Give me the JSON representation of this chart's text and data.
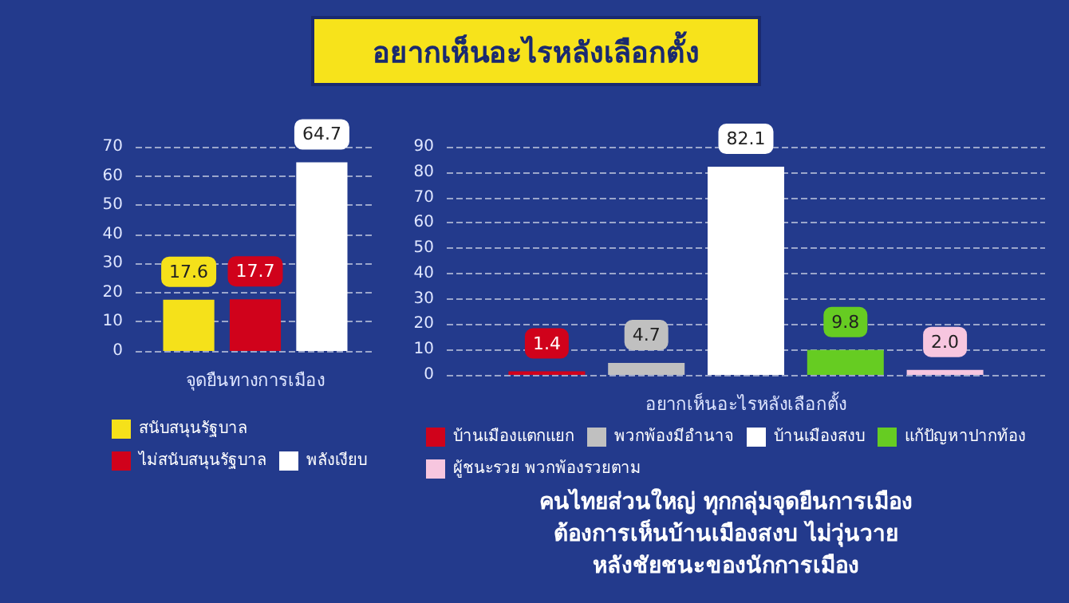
{
  "chart_data": [
    {
      "type": "other",
      "title": "อยากเห็นอะไรหลังเลือกตั้ง"
    },
    {
      "type": "bar",
      "xlabel": "จุดยืนทางการเมือง",
      "categories": [
        null
      ],
      "series": [
        {
          "name": "สนับสนุนรัฐบาล",
          "color": "#f5e11a",
          "values": [
            17.6
          ],
          "value_labels": [
            "17.6"
          ]
        },
        {
          "name": "ไม่สนับสนุนรัฐบาล",
          "color": "#d0021b",
          "values": [
            17.7
          ],
          "value_labels": [
            "17.7"
          ]
        },
        {
          "name": "พลังเงียบ",
          "color": "#ffffff",
          "values": [
            64.7
          ],
          "value_labels": [
            "64.7"
          ]
        }
      ],
      "ylim": [
        0,
        70
      ],
      "yticks": [
        0,
        10,
        20,
        30,
        40,
        50,
        60,
        70
      ],
      "grid": "y",
      "legend": "bottom"
    },
    {
      "type": "bar",
      "xlabel": "อยากเห็นอะไรหลังเลือกตั้ง",
      "categories": [
        null
      ],
      "series": [
        {
          "name": "บ้านเมืองแตกแยก",
          "color": "#d0021b",
          "values": [
            1.4
          ],
          "value_labels": [
            "1.4"
          ]
        },
        {
          "name": "พวกพ้องมีอำนาจ",
          "color": "#c0c0c0",
          "values": [
            4.7
          ],
          "value_labels": [
            "4.7"
          ]
        },
        {
          "name": "บ้านเมืองสงบ",
          "color": "#ffffff",
          "values": [
            82.1
          ],
          "value_labels": [
            "82.1"
          ]
        },
        {
          "name": "แก้ปัญหาปากท้อง",
          "color": "#66cc22",
          "values": [
            9.8
          ],
          "value_labels": [
            "9.8"
          ]
        },
        {
          "name": "ผู้ชนะรวย พวกพ้องรวยตาม",
          "color": "#f7c6df",
          "values": [
            2.0
          ],
          "value_labels": [
            "2.0"
          ]
        }
      ],
      "ylim": [
        0,
        90
      ],
      "yticks": [
        0,
        10,
        20,
        30,
        40,
        50,
        60,
        70,
        80,
        90
      ],
      "grid": "y",
      "legend": "bottom",
      "annotations": [
        "คนไทยส่วนใหญ่ ทุกกลุ่มจุดยืนการเมือง",
        "ต้องการเห็นบ้านเมืองสงบ ไม่วุ่นวาย",
        "หลังชัยชนะของนักการเมือง"
      ]
    }
  ]
}
